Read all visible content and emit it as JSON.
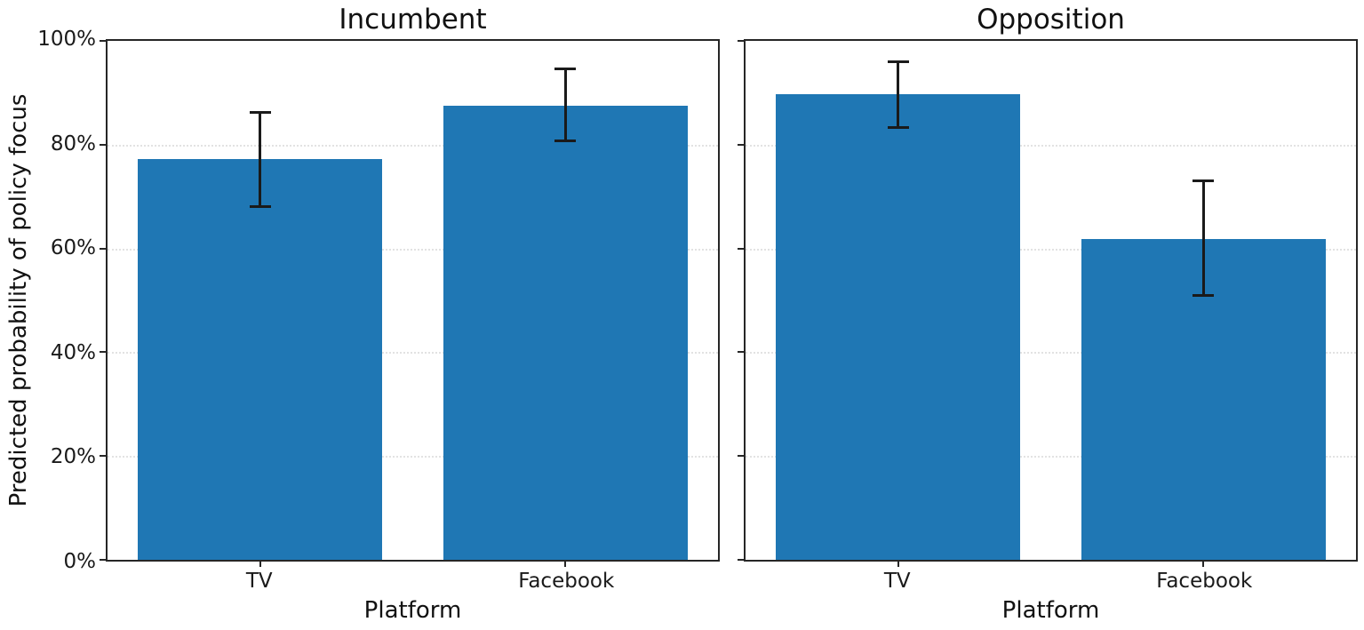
{
  "figure": {
    "background": "#ffffff",
    "ylabel": "Predicted probability of policy focus",
    "yticks": [
      {
        "value": 0,
        "label": "0%"
      },
      {
        "value": 20,
        "label": "20%"
      },
      {
        "value": 40,
        "label": "40%"
      },
      {
        "value": 60,
        "label": "60%"
      },
      {
        "value": 80,
        "label": "80%"
      },
      {
        "value": 100,
        "label": "100%"
      }
    ]
  },
  "chart_data": [
    {
      "type": "bar",
      "title": "Incumbent",
      "xlabel": "Platform",
      "ylabel": "Predicted probability of policy focus",
      "categories": [
        "TV",
        "Facebook"
      ],
      "values": [
        77.2,
        87.5
      ],
      "error_low": [
        68.0,
        80.8
      ],
      "error_high": [
        86.2,
        94.6
      ],
      "ylim": [
        0,
        100
      ],
      "ytick_values": [
        0,
        20,
        40,
        60,
        80,
        100
      ],
      "grid_values": [
        20,
        40,
        60,
        80
      ],
      "grid": "horizontal dotted",
      "legend": "none",
      "bar_color": "#1f77b4",
      "error_color": "#1a1a1a"
    },
    {
      "type": "bar",
      "title": "Opposition",
      "xlabel": "Platform",
      "ylabel": "Predicted probability of policy focus",
      "categories": [
        "TV",
        "Facebook"
      ],
      "values": [
        89.7,
        61.8
      ],
      "error_low": [
        83.3,
        51.0
      ],
      "error_high": [
        96.0,
        73.0
      ],
      "ylim": [
        0,
        100
      ],
      "ytick_values": [
        0,
        20,
        40,
        60,
        80,
        100
      ],
      "grid_values": [
        20,
        40,
        60,
        80
      ],
      "grid": "horizontal dotted",
      "legend": "none",
      "bar_color": "#1f77b4",
      "error_color": "#1a1a1a"
    }
  ]
}
